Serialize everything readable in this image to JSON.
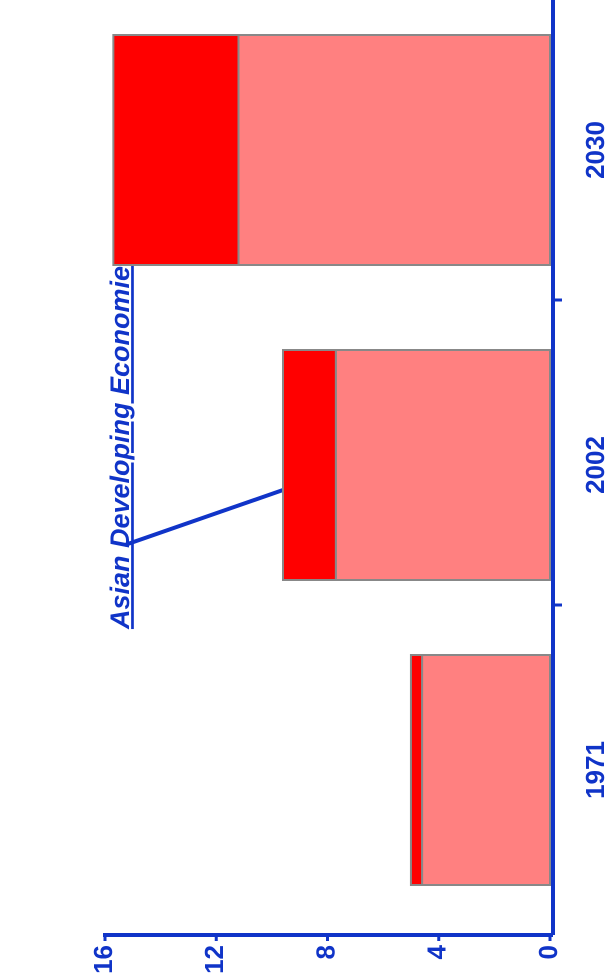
{
  "chart_data": {
    "type": "bar",
    "stacked": true,
    "title": "Asian Developing Economies",
    "categories": [
      "1971",
      "2002",
      "2030"
    ],
    "series": [
      {
        "color": "#ff8080",
        "values": [
          4.6,
          7.7,
          11.2
        ]
      },
      {
        "color": "#ff0000",
        "values": [
          0.4,
          1.9,
          4.5
        ]
      }
    ],
    "ylim": [
      0,
      16
    ],
    "yticks": [
      0,
      4,
      8,
      12,
      16
    ]
  }
}
